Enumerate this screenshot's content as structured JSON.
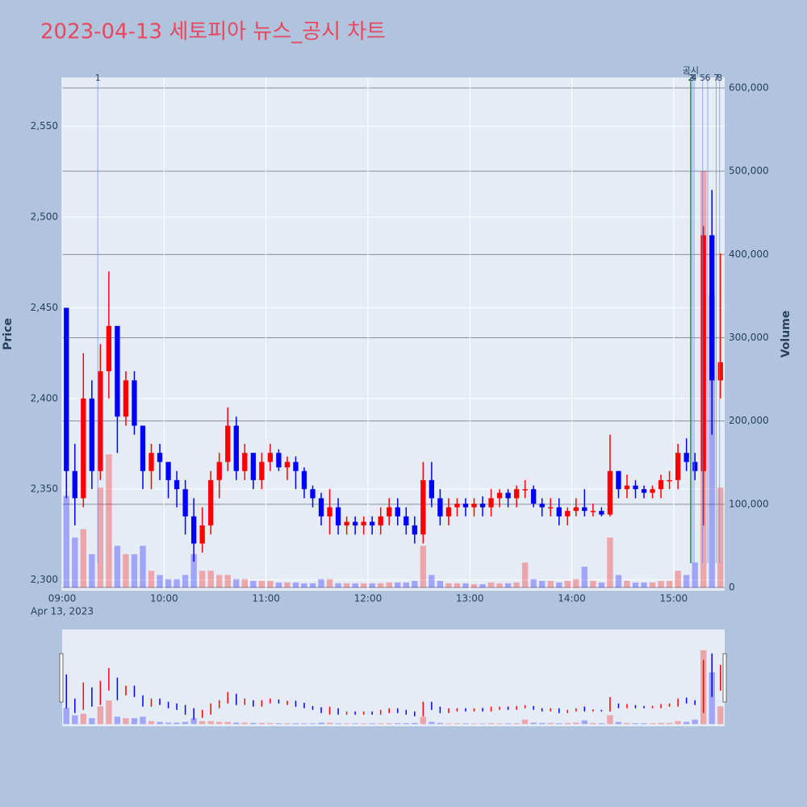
{
  "chart_data": {
    "type": "candlestick",
    "title": "2023-04-13 세토피아 뉴스_공시 차트",
    "ylabel": "Price",
    "y2label": "Volume",
    "increasing_color": "#ff0000",
    "decreasing_color": "#0000ff",
    "x": [
      "2023-04-13 09:00",
      "2023-04-13 09:05",
      "2023-04-13 09:10",
      "2023-04-13 09:15",
      "2023-04-13 09:20",
      "2023-04-13 09:25",
      "2023-04-13 09:30",
      "2023-04-13 09:35",
      "2023-04-13 09:40",
      "2023-04-13 09:45",
      "2023-04-13 09:50",
      "2023-04-13 09:55",
      "2023-04-13 10:00",
      "2023-04-13 10:05",
      "2023-04-13 10:10",
      "2023-04-13 10:15",
      "2023-04-13 10:20",
      "2023-04-13 10:25",
      "2023-04-13 10:30",
      "2023-04-13 10:35",
      "2023-04-13 10:40",
      "2023-04-13 10:45",
      "2023-04-13 10:50",
      "2023-04-13 10:55",
      "2023-04-13 11:00",
      "2023-04-13 11:05",
      "2023-04-13 11:10",
      "2023-04-13 11:15",
      "2023-04-13 11:20",
      "2023-04-13 11:25",
      "2023-04-13 11:30",
      "2023-04-13 11:35",
      "2023-04-13 11:40",
      "2023-04-13 11:45",
      "2023-04-13 11:50",
      "2023-04-13 11:55",
      "2023-04-13 12:00",
      "2023-04-13 12:05",
      "2023-04-13 12:10",
      "2023-04-13 12:15",
      "2023-04-13 12:20",
      "2023-04-13 12:25",
      "2023-04-13 12:30",
      "2023-04-13 12:35",
      "2023-04-13 12:40",
      "2023-04-13 12:45",
      "2023-04-13 12:50",
      "2023-04-13 12:55",
      "2023-04-13 13:00",
      "2023-04-13 13:05",
      "2023-04-13 13:10",
      "2023-04-13 13:15",
      "2023-04-13 13:20",
      "2023-04-13 13:25",
      "2023-04-13 13:30",
      "2023-04-13 13:35",
      "2023-04-13 13:40",
      "2023-04-13 13:45",
      "2023-04-13 13:50",
      "2023-04-13 13:55",
      "2023-04-13 14:00",
      "2023-04-13 14:05",
      "2023-04-13 14:10",
      "2023-04-13 14:15",
      "2023-04-13 14:20",
      "2023-04-13 14:25",
      "2023-04-13 14:30",
      "2023-04-13 14:35",
      "2023-04-13 14:40",
      "2023-04-13 14:45",
      "2023-04-13 14:50",
      "2023-04-13 14:55",
      "2023-04-13 15:00",
      "2023-04-13 15:05",
      "2023-04-13 15:10",
      "2023-04-13 15:15",
      "2023-04-13 15:20",
      "2023-04-13 15:25"
    ],
    "open": [
      2450,
      2360,
      2345,
      2400,
      2360,
      2415,
      2440,
      2390,
      2410,
      2385,
      2360,
      2370,
      2365,
      2355,
      2350,
      2335,
      2320,
      2330,
      2355,
      2365,
      2385,
      2360,
      2370,
      2355,
      2365,
      2370,
      2362,
      2365,
      2360,
      2350,
      2345,
      2335,
      2340,
      2330,
      2332,
      2330,
      2332,
      2330,
      2335,
      2340,
      2335,
      2330,
      2325,
      2355,
      2345,
      2335,
      2340,
      2342,
      2340,
      2342,
      2340,
      2345,
      2348,
      2345,
      2350,
      2350,
      2342,
      2340,
      2340,
      2335,
      2338,
      2340,
      2338,
      2338,
      2336,
      2360,
      2350,
      2352,
      2350,
      2348,
      2350,
      2355,
      2355,
      2370,
      2365,
      2360,
      2490,
      2410
    ],
    "high": [
      2450,
      2375,
      2425,
      2410,
      2430,
      2470,
      2440,
      2415,
      2415,
      2385,
      2375,
      2375,
      2365,
      2360,
      2355,
      2345,
      2340,
      2360,
      2370,
      2395,
      2390,
      2375,
      2370,
      2370,
      2375,
      2372,
      2368,
      2368,
      2362,
      2352,
      2348,
      2350,
      2345,
      2335,
      2335,
      2335,
      2335,
      2340,
      2345,
      2345,
      2340,
      2335,
      2365,
      2365,
      2350,
      2345,
      2345,
      2345,
      2345,
      2346,
      2350,
      2350,
      2350,
      2352,
      2355,
      2352,
      2345,
      2345,
      2345,
      2340,
      2345,
      2350,
      2342,
      2340,
      2380,
      2360,
      2358,
      2355,
      2352,
      2352,
      2358,
      2360,
      2375,
      2378,
      2370,
      2495,
      2515,
      2480
    ],
    "low": [
      2345,
      2330,
      2340,
      2350,
      2355,
      2400,
      2370,
      2385,
      2380,
      2350,
      2350,
      2355,
      2345,
      2340,
      2325,
      2310,
      2315,
      2325,
      2345,
      2360,
      2355,
      2355,
      2350,
      2350,
      2360,
      2360,
      2355,
      2350,
      2345,
      2340,
      2330,
      2325,
      2325,
      2325,
      2325,
      2325,
      2325,
      2325,
      2330,
      2330,
      2325,
      2320,
      2320,
      2340,
      2330,
      2330,
      2335,
      2335,
      2335,
      2335,
      2335,
      2340,
      2340,
      2340,
      2345,
      2340,
      2335,
      2335,
      2330,
      2330,
      2335,
      2335,
      2335,
      2335,
      2335,
      2345,
      2345,
      2345,
      2345,
      2345,
      2345,
      2350,
      2350,
      2360,
      2355,
      2330,
      2380,
      2400
    ],
    "close": [
      2360,
      2345,
      2400,
      2360,
      2415,
      2440,
      2390,
      2410,
      2385,
      2360,
      2370,
      2365,
      2355,
      2350,
      2335,
      2320,
      2330,
      2355,
      2365,
      2385,
      2360,
      2370,
      2355,
      2365,
      2370,
      2362,
      2365,
      2360,
      2350,
      2345,
      2335,
      2340,
      2330,
      2332,
      2330,
      2332,
      2330,
      2335,
      2340,
      2335,
      2330,
      2325,
      2355,
      2345,
      2335,
      2340,
      2342,
      2340,
      2342,
      2340,
      2345,
      2348,
      2345,
      2350,
      2350,
      2342,
      2340,
      2340,
      2335,
      2338,
      2340,
      2338,
      2338,
      2336,
      2360,
      2350,
      2352,
      2350,
      2348,
      2350,
      2355,
      2355,
      2370,
      2365,
      2360,
      2490,
      2410,
      2420
    ],
    "volume": [
      110000,
      60000,
      70000,
      40000,
      120000,
      160000,
      50000,
      40000,
      40000,
      50000,
      20000,
      15000,
      10000,
      10000,
      15000,
      40000,
      20000,
      20000,
      15000,
      15000,
      10000,
      10000,
      8000,
      8000,
      8000,
      6000,
      6000,
      6000,
      5000,
      5000,
      10000,
      10000,
      5000,
      5000,
      5000,
      5000,
      5000,
      5000,
      6000,
      6000,
      6000,
      8000,
      50000,
      15000,
      8000,
      5000,
      5000,
      5000,
      4000,
      4000,
      6000,
      5000,
      5000,
      6000,
      30000,
      10000,
      8000,
      8000,
      6000,
      8000,
      10000,
      25000,
      8000,
      6000,
      60000,
      15000,
      8000,
      6000,
      6000,
      6000,
      8000,
      8000,
      20000,
      15000,
      30000,
      500000,
      350000,
      120000
    ],
    "xlim": [
      "2023-04-13 09:00",
      "2023-04-13 15:30"
    ],
    "xticks": [
      {
        "value": "2023-04-13 09:00",
        "label": "09:00"
      },
      {
        "value": "2023-04-13 10:00",
        "label": "10:00"
      },
      {
        "value": "2023-04-13 11:00",
        "label": "11:00"
      },
      {
        "value": "2023-04-13 12:00",
        "label": "12:00"
      },
      {
        "value": "2023-04-13 13:00",
        "label": "13:00"
      },
      {
        "value": "2023-04-13 14:00",
        "label": "14:00"
      },
      {
        "value": "2023-04-13 15:00",
        "label": "15:00"
      }
    ],
    "x_date_label": "Apr 13, 2023",
    "ylim": [
      2294,
      2577
    ],
    "yticks": [
      {
        "value": 2300,
        "label": "2,300"
      },
      {
        "value": 2350,
        "label": "2,350"
      },
      {
        "value": 2400,
        "label": "2,400"
      },
      {
        "value": 2450,
        "label": "2,450"
      },
      {
        "value": 2500,
        "label": "2,500"
      },
      {
        "value": 2550,
        "label": "2,550"
      }
    ],
    "y2lim": [
      -3900,
      612600
    ],
    "y2ticks": [
      0,
      {
        "value": 100000,
        "label": "100,000"
      },
      {
        "value": 200000,
        "label": "200,000"
      },
      {
        "value": 300000,
        "label": "300,000"
      },
      {
        "value": 400000,
        "label": "400,000"
      },
      {
        "value": 500000,
        "label": "500,000"
      },
      {
        "value": 600000,
        "label": "600,000"
      }
    ],
    "events": [
      {
        "label": "1",
        "x": "2023-04-13 09:21"
      },
      {
        "label": "2",
        "x": "2023-04-13 15:10"
      },
      {
        "label": "3",
        "x": "2023-04-13 15:11"
      },
      {
        "label": "4",
        "x": "2023-04-13 15:12"
      },
      {
        "label": "5",
        "x": "2023-04-13 15:17"
      },
      {
        "label": "6",
        "x": "2023-04-13 15:20"
      },
      {
        "label": "7",
        "x": "2023-04-13 15:25"
      },
      {
        "label": "8",
        "x": "2023-04-13 15:27"
      }
    ],
    "announcement": {
      "label": "공시",
      "x": "2023-04-13 15:10"
    }
  }
}
